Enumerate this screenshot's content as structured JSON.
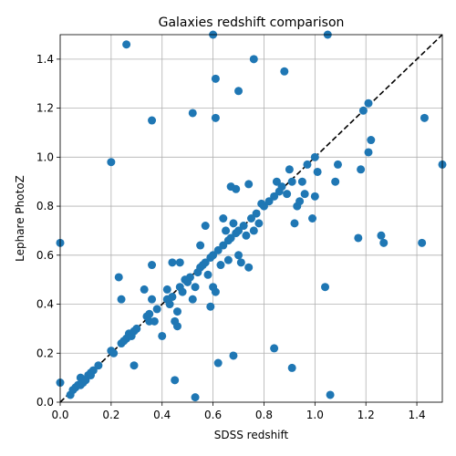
{
  "chart_data": {
    "type": "scatter",
    "title": "Galaxies redshift comparison",
    "xlabel": "SDSS redshift",
    "ylabel": "Lephare PhotoZ",
    "xlim": [
      0.0,
      1.5
    ],
    "ylim": [
      0.0,
      1.5
    ],
    "xticks": [
      "0.0",
      "0.2",
      "0.4",
      "0.6",
      "0.8",
      "1.0",
      "1.2",
      "1.4"
    ],
    "yticks": [
      "0.0",
      "0.2",
      "0.4",
      "0.6",
      "0.8",
      "1.0",
      "1.2",
      "1.4"
    ],
    "grid": true,
    "marker_color": "#1f77b4",
    "reference_line": {
      "style": "dashed",
      "color": "#000000",
      "from": [
        0,
        0
      ],
      "to": [
        1.5,
        1.5
      ]
    },
    "points": [
      [
        0.04,
        0.03
      ],
      [
        0.05,
        0.05
      ],
      [
        0.06,
        0.06
      ],
      [
        0.07,
        0.07
      ],
      [
        0.08,
        0.1
      ],
      [
        0.08,
        0.07
      ],
      [
        0.09,
        0.08
      ],
      [
        0.1,
        0.09
      ],
      [
        0.11,
        0.11
      ],
      [
        0.12,
        0.12
      ],
      [
        0.13,
        0.13
      ],
      [
        0.15,
        0.15
      ],
      [
        0.12,
        0.11
      ],
      [
        0.0,
        0.08
      ],
      [
        0.0,
        0.65
      ],
      [
        0.2,
        0.98
      ],
      [
        0.2,
        0.21
      ],
      [
        0.21,
        0.2
      ],
      [
        0.23,
        0.51
      ],
      [
        0.24,
        0.42
      ],
      [
        0.24,
        0.24
      ],
      [
        0.25,
        0.25
      ],
      [
        0.26,
        1.46
      ],
      [
        0.26,
        0.26
      ],
      [
        0.27,
        0.28
      ],
      [
        0.28,
        0.27
      ],
      [
        0.29,
        0.15
      ],
      [
        0.29,
        0.29
      ],
      [
        0.3,
        0.3
      ],
      [
        0.33,
        0.46
      ],
      [
        0.34,
        0.35
      ],
      [
        0.35,
        0.36
      ],
      [
        0.35,
        0.33
      ],
      [
        0.36,
        1.15
      ],
      [
        0.36,
        0.56
      ],
      [
        0.36,
        0.42
      ],
      [
        0.37,
        0.33
      ],
      [
        0.38,
        0.38
      ],
      [
        0.4,
        0.27
      ],
      [
        0.42,
        0.46
      ],
      [
        0.42,
        0.42
      ],
      [
        0.43,
        0.4
      ],
      [
        0.44,
        0.57
      ],
      [
        0.44,
        0.43
      ],
      [
        0.45,
        0.09
      ],
      [
        0.45,
        0.33
      ],
      [
        0.46,
        0.31
      ],
      [
        0.46,
        0.37
      ],
      [
        0.47,
        0.57
      ],
      [
        0.47,
        0.47
      ],
      [
        0.48,
        0.45
      ],
      [
        0.49,
        0.5
      ],
      [
        0.5,
        0.49
      ],
      [
        0.51,
        0.51
      ],
      [
        0.52,
        1.18
      ],
      [
        0.52,
        0.42
      ],
      [
        0.53,
        0.02
      ],
      [
        0.53,
        0.47
      ],
      [
        0.54,
        0.53
      ],
      [
        0.55,
        0.64
      ],
      [
        0.55,
        0.55
      ],
      [
        0.56,
        0.56
      ],
      [
        0.57,
        0.72
      ],
      [
        0.57,
        0.57
      ],
      [
        0.58,
        0.52
      ],
      [
        0.59,
        0.39
      ],
      [
        0.59,
        0.59
      ],
      [
        0.6,
        1.5
      ],
      [
        0.6,
        0.47
      ],
      [
        0.6,
        0.6
      ],
      [
        0.61,
        1.32
      ],
      [
        0.61,
        1.16
      ],
      [
        0.61,
        0.45
      ],
      [
        0.62,
        0.62
      ],
      [
        0.62,
        0.16
      ],
      [
        0.63,
        0.56
      ],
      [
        0.64,
        0.64
      ],
      [
        0.64,
        0.75
      ],
      [
        0.65,
        0.7
      ],
      [
        0.66,
        0.58
      ],
      [
        0.66,
        0.66
      ],
      [
        0.67,
        0.88
      ],
      [
        0.67,
        0.67
      ],
      [
        0.68,
        0.73
      ],
      [
        0.68,
        0.19
      ],
      [
        0.69,
        0.87
      ],
      [
        0.69,
        0.69
      ],
      [
        0.7,
        1.27
      ],
      [
        0.7,
        0.6
      ],
      [
        0.7,
        0.7
      ],
      [
        0.71,
        0.57
      ],
      [
        0.72,
        0.72
      ],
      [
        0.73,
        0.68
      ],
      [
        0.74,
        0.89
      ],
      [
        0.74,
        0.55
      ],
      [
        0.75,
        0.75
      ],
      [
        0.76,
        1.4
      ],
      [
        0.76,
        0.7
      ],
      [
        0.77,
        0.77
      ],
      [
        0.78,
        0.73
      ],
      [
        0.79,
        0.81
      ],
      [
        0.8,
        0.8
      ],
      [
        0.82,
        0.82
      ],
      [
        0.84,
        0.22
      ],
      [
        0.84,
        0.84
      ],
      [
        0.85,
        0.9
      ],
      [
        0.86,
        0.86
      ],
      [
        0.87,
        0.88
      ],
      [
        0.88,
        1.35
      ],
      [
        0.89,
        0.85
      ],
      [
        0.9,
        0.95
      ],
      [
        0.91,
        0.14
      ],
      [
        0.91,
        0.9
      ],
      [
        0.92,
        0.73
      ],
      [
        0.93,
        0.8
      ],
      [
        0.94,
        0.82
      ],
      [
        0.95,
        0.9
      ],
      [
        0.96,
        0.85
      ],
      [
        0.97,
        0.97
      ],
      [
        0.99,
        0.75
      ],
      [
        1.0,
        0.84
      ],
      [
        1.0,
        1.0
      ],
      [
        1.01,
        0.94
      ],
      [
        1.04,
        0.47
      ],
      [
        1.05,
        1.5
      ],
      [
        1.06,
        0.03
      ],
      [
        1.08,
        0.9
      ],
      [
        1.09,
        0.97
      ],
      [
        1.17,
        0.67
      ],
      [
        1.18,
        0.95
      ],
      [
        1.19,
        1.19
      ],
      [
        1.21,
        1.22
      ],
      [
        1.21,
        1.02
      ],
      [
        1.22,
        1.07
      ],
      [
        1.26,
        0.68
      ],
      [
        1.27,
        0.65
      ],
      [
        1.42,
        0.65
      ],
      [
        1.43,
        1.16
      ],
      [
        1.5,
        0.97
      ]
    ]
  }
}
